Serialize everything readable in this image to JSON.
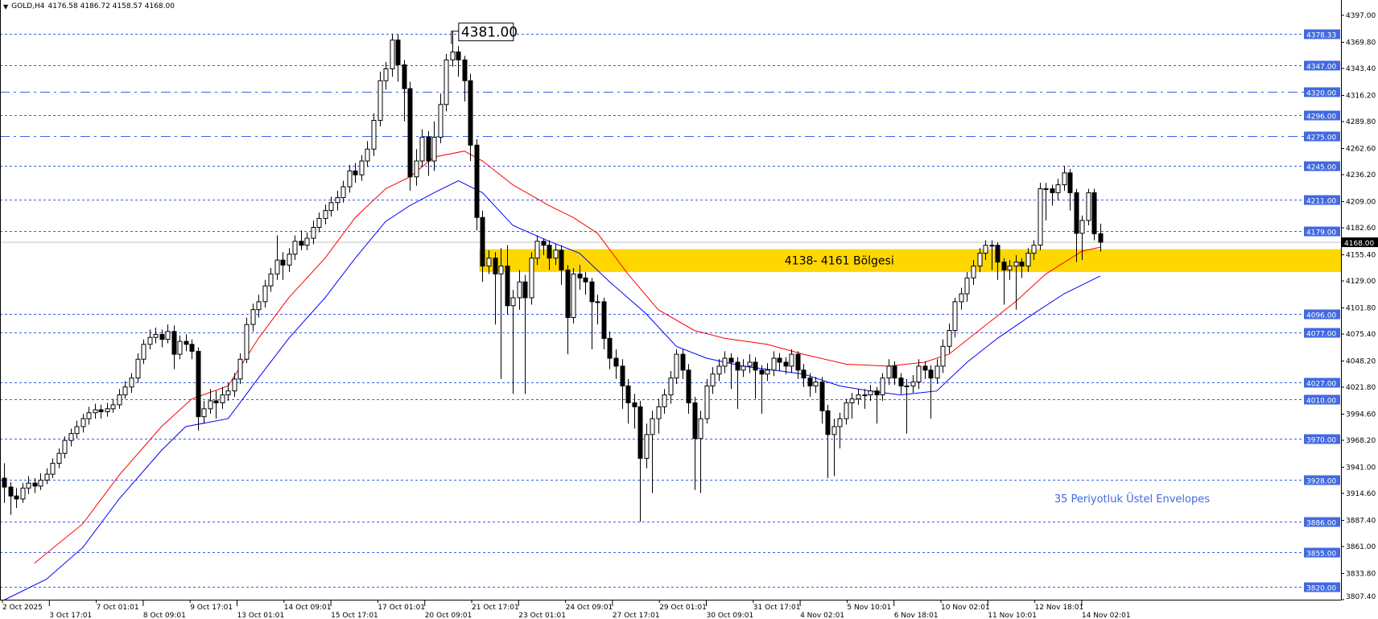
{
  "header": {
    "symbol": "GOLD,H4",
    "ohlc_text": "4176.58 4186.72 4158.57 4168.00",
    "menu_icon": "triangle-down-icon"
  },
  "colors": {
    "line_level": "#3b5fe6",
    "label_bg": "#4169e1",
    "zone": "#ffd700",
    "upper_envelope": "#ff0000",
    "lower_envelope": "#0000ff",
    "current_price_bg": "#000000",
    "annotation_text": "#4169e1"
  },
  "chart_data": {
    "type": "candlestick",
    "symbol": "GOLD",
    "timeframe": "H4",
    "ylim": [
      3807.4,
      4397.0
    ],
    "grid": false,
    "y_ticks": [
      "4397.00",
      "4369.80",
      "4343.40",
      "4316.20",
      "4289.80",
      "4262.60",
      "4236.20",
      "4209.00",
      "4182.60",
      "4155.40",
      "4129.00",
      "4101.80",
      "4075.40",
      "4048.20",
      "4021.80",
      "3994.60",
      "3968.20",
      "3941.00",
      "3914.60",
      "3887.40",
      "3861.00",
      "3833.80",
      "3807.40"
    ],
    "x_ticks": [
      "2 Oct 2025",
      "3 Oct 17:01",
      "7 Oct 01:01",
      "8 Oct 09:01",
      "9 Oct 17:01",
      "13 Oct 01:01",
      "14 Oct 09:01",
      "15 Oct 17:01",
      "17 Oct 01:01",
      "20 Oct 09:01",
      "21 Oct 17:01",
      "23 Oct 01:01",
      "24 Oct 09:01",
      "27 Oct 17:01",
      "29 Oct 01:01",
      "30 Oct 09:01",
      "31 Oct 17:01",
      "4 Nov 02:01",
      "5 Nov 10:01",
      "6 Nov 18:01",
      "10 Nov 02:01",
      "11 Nov 10:01",
      "12 Nov 18:01",
      "14 Nov 02:01"
    ],
    "ohlc": [
      [
        3930,
        3945,
        3905,
        3921
      ],
      [
        3921,
        3926,
        3893,
        3912
      ],
      [
        3912,
        3920,
        3900,
        3909
      ],
      [
        3909,
        3925,
        3905,
        3920
      ],
      [
        3920,
        3932,
        3914,
        3925
      ],
      [
        3925,
        3930,
        3915,
        3922
      ],
      [
        3922,
        3935,
        3918,
        3928
      ],
      [
        3928,
        3940,
        3924,
        3934
      ],
      [
        3934,
        3950,
        3930,
        3945
      ],
      [
        3945,
        3960,
        3940,
        3955
      ],
      [
        3955,
        3972,
        3950,
        3968
      ],
      [
        3968,
        3980,
        3962,
        3975
      ],
      [
        3975,
        3988,
        3970,
        3982
      ],
      [
        3982,
        3995,
        3976,
        3990
      ],
      [
        3990,
        4002,
        3984,
        3996
      ],
      [
        3996,
        4005,
        3990,
        3999
      ],
      [
        3999,
        4004,
        3990,
        3997
      ],
      [
        3997,
        4006,
        3992,
        4000
      ],
      [
        4000,
        4010,
        3996,
        4004
      ],
      [
        4004,
        4020,
        4000,
        4014
      ],
      [
        4014,
        4028,
        4010,
        4022
      ],
      [
        4022,
        4036,
        4016,
        4031
      ],
      [
        4031,
        4056,
        4026,
        4050
      ],
      [
        4050,
        4070,
        4045,
        4065
      ],
      [
        4065,
        4080,
        4060,
        4072
      ],
      [
        4072,
        4082,
        4066,
        4075
      ],
      [
        4075,
        4080,
        4062,
        4070
      ],
      [
        4070,
        4085,
        4066,
        4078
      ],
      [
        4078,
        4084,
        4040,
        4055
      ],
      [
        4055,
        4074,
        4050,
        4068
      ],
      [
        4068,
        4075,
        4058,
        4065
      ],
      [
        4065,
        4070,
        4050,
        4058
      ],
      [
        4058,
        4062,
        3978,
        3992
      ],
      [
        3992,
        4008,
        3985,
        4000
      ],
      [
        4000,
        4020,
        3995,
        4008
      ],
      [
        4008,
        4018,
        3990,
        4006
      ],
      [
        4006,
        4022,
        4000,
        4014
      ],
      [
        4014,
        4026,
        4008,
        4018
      ],
      [
        4018,
        4036,
        4012,
        4030
      ],
      [
        4030,
        4056,
        4025,
        4050
      ],
      [
        4050,
        4092,
        4046,
        4085
      ],
      [
        4085,
        4106,
        4078,
        4100
      ],
      [
        4100,
        4115,
        4092,
        4108
      ],
      [
        4108,
        4130,
        4102,
        4124
      ],
      [
        4124,
        4142,
        4118,
        4136
      ],
      [
        4136,
        4175,
        4130,
        4150
      ],
      [
        4150,
        4158,
        4130,
        4145
      ],
      [
        4145,
        4162,
        4138,
        4156
      ],
      [
        4156,
        4175,
        4150,
        4169
      ],
      [
        4169,
        4180,
        4160,
        4165
      ],
      [
        4165,
        4178,
        4160,
        4172
      ],
      [
        4172,
        4190,
        4166,
        4183
      ],
      [
        4183,
        4198,
        4178,
        4192
      ],
      [
        4192,
        4206,
        4186,
        4200
      ],
      [
        4200,
        4214,
        4194,
        4208
      ],
      [
        4208,
        4220,
        4200,
        4213
      ],
      [
        4213,
        4230,
        4208,
        4224
      ],
      [
        4224,
        4246,
        4218,
        4240
      ],
      [
        4240,
        4248,
        4228,
        4236
      ],
      [
        4236,
        4256,
        4230,
        4250
      ],
      [
        4250,
        4270,
        4244,
        4262
      ],
      [
        4262,
        4298,
        4255,
        4291
      ],
      [
        4291,
        4340,
        4285,
        4331
      ],
      [
        4331,
        4350,
        4322,
        4343
      ],
      [
        4343,
        4378,
        4335,
        4372
      ],
      [
        4372,
        4378,
        4330,
        4347
      ],
      [
        4347,
        4352,
        4290,
        4323
      ],
      [
        4323,
        4330,
        4220,
        4234
      ],
      [
        4234,
        4262,
        4225,
        4250
      ],
      [
        4250,
        4282,
        4244,
        4274
      ],
      [
        4274,
        4280,
        4235,
        4250
      ],
      [
        4250,
        4290,
        4240,
        4274
      ],
      [
        4274,
        4318,
        4268,
        4307
      ],
      [
        4307,
        4358,
        4300,
        4352
      ],
      [
        4352,
        4381,
        4345,
        4360
      ],
      [
        4360,
        4366,
        4335,
        4352
      ],
      [
        4352,
        4356,
        4310,
        4331
      ],
      [
        4331,
        4338,
        4250,
        4266
      ],
      [
        4266,
        4272,
        4180,
        4193
      ],
      [
        4193,
        4200,
        4128,
        4144
      ],
      [
        4144,
        4160,
        4136,
        4152
      ],
      [
        4152,
        4158,
        4085,
        4136
      ],
      [
        4136,
        4162,
        4030,
        4144
      ],
      [
        4144,
        4165,
        4095,
        4104
      ],
      [
        4104,
        4120,
        4015,
        4112
      ],
      [
        4112,
        4140,
        4100,
        4128
      ],
      [
        4128,
        4135,
        4015,
        4112
      ],
      [
        4112,
        4158,
        4105,
        4152
      ],
      [
        4152,
        4175,
        4145,
        4169
      ],
      [
        4169,
        4172,
        4155,
        4165
      ],
      [
        4165,
        4170,
        4140,
        4152
      ],
      [
        4152,
        4166,
        4145,
        4160
      ],
      [
        4160,
        4165,
        4125,
        4140
      ],
      [
        4140,
        4145,
        4055,
        4092
      ],
      [
        4092,
        4142,
        4086,
        4136
      ],
      [
        4136,
        4145,
        4120,
        4132
      ],
      [
        4132,
        4138,
        4115,
        4128
      ],
      [
        4128,
        4132,
        4060,
        4108
      ],
      [
        4108,
        4115,
        4085,
        4108
      ],
      [
        4108,
        4112,
        4060,
        4071
      ],
      [
        4071,
        4078,
        4040,
        4051
      ],
      [
        4051,
        4060,
        4030,
        4043
      ],
      [
        4043,
        4050,
        4000,
        4023
      ],
      [
        4023,
        4030,
        3985,
        4006
      ],
      [
        4006,
        4015,
        3980,
        4002
      ],
      [
        4002,
        4008,
        3886,
        3950
      ],
      [
        3950,
        3985,
        3940,
        3974
      ],
      [
        3974,
        3998,
        3915,
        3990
      ],
      [
        3990,
        4010,
        3975,
        4002
      ],
      [
        4002,
        4020,
        3995,
        4014
      ],
      [
        4014,
        4038,
        4005,
        4031
      ],
      [
        4031,
        4060,
        4025,
        4055
      ],
      [
        4055,
        4060,
        4030,
        4039
      ],
      [
        4039,
        4045,
        3995,
        4006
      ],
      [
        4006,
        4012,
        3918,
        3970
      ],
      [
        3970,
        3998,
        3915,
        3990
      ],
      [
        3990,
        4030,
        3985,
        4023
      ],
      [
        4023,
        4042,
        4015,
        4035
      ],
      [
        4035,
        4050,
        4028,
        4043
      ],
      [
        4043,
        4058,
        4036,
        4051
      ],
      [
        4051,
        4056,
        4020,
        4047
      ],
      [
        4047,
        4052,
        4000,
        4039
      ],
      [
        4039,
        4050,
        4032,
        4043
      ],
      [
        4043,
        4055,
        4036,
        4047
      ],
      [
        4047,
        4052,
        4010,
        4039
      ],
      [
        4039,
        4044,
        3995,
        4035
      ],
      [
        4035,
        4046,
        4028,
        4039
      ],
      [
        4039,
        4058,
        4033,
        4051
      ],
      [
        4051,
        4056,
        4038,
        4047
      ],
      [
        4047,
        4052,
        4035,
        4043
      ],
      [
        4043,
        4060,
        4036,
        4055
      ],
      [
        4055,
        4058,
        4030,
        4039
      ],
      [
        4039,
        4045,
        4022,
        4031
      ],
      [
        4031,
        4036,
        4012,
        4023
      ],
      [
        4023,
        4032,
        4016,
        4027
      ],
      [
        4027,
        4032,
        3985,
        3998
      ],
      [
        3998,
        4004,
        3930,
        3974
      ],
      [
        3974,
        3990,
        3932,
        3982
      ],
      [
        3982,
        3996,
        3960,
        3990
      ],
      [
        3990,
        4010,
        3984,
        4006
      ],
      [
        4006,
        4016,
        3990,
        4010
      ],
      [
        4010,
        4020,
        4004,
        4014
      ],
      [
        4014,
        4020,
        4000,
        4014
      ],
      [
        4014,
        4024,
        4008,
        4018
      ],
      [
        4018,
        4022,
        3985,
        4014
      ],
      [
        4014,
        4036,
        4008,
        4031
      ],
      [
        4031,
        4050,
        4024,
        4043
      ],
      [
        4043,
        4048,
        4024,
        4031
      ],
      [
        4031,
        4036,
        4015,
        4023
      ],
      [
        4023,
        4030,
        3975,
        4023
      ],
      [
        4023,
        4034,
        4016,
        4027
      ],
      [
        4027,
        4050,
        4020,
        4043
      ],
      [
        4043,
        4048,
        4030,
        4039
      ],
      [
        4039,
        4044,
        3990,
        4031
      ],
      [
        4031,
        4050,
        4025,
        4043
      ],
      [
        4043,
        4070,
        4036,
        4063
      ],
      [
        4063,
        4086,
        4056,
        4079
      ],
      [
        4079,
        4112,
        4072,
        4108
      ],
      [
        4108,
        4122,
        4100,
        4116
      ],
      [
        4116,
        4138,
        4108,
        4132
      ],
      [
        4132,
        4150,
        4125,
        4144
      ],
      [
        4144,
        4162,
        4138,
        4157
      ],
      [
        4157,
        4170,
        4150,
        4165
      ],
      [
        4165,
        4170,
        4140,
        4165
      ],
      [
        4165,
        4168,
        4130,
        4148
      ],
      [
        4148,
        4152,
        4105,
        4140
      ],
      [
        4140,
        4150,
        4130,
        4144
      ],
      [
        4144,
        4155,
        4100,
        4148
      ],
      [
        4148,
        4152,
        4132,
        4144
      ],
      [
        4144,
        4162,
        4138,
        4157
      ],
      [
        4157,
        4170,
        4150,
        4165
      ],
      [
        4165,
        4228,
        4160,
        4222
      ],
      [
        4222,
        4228,
        4190,
        4222
      ],
      [
        4222,
        4226,
        4205,
        4218
      ],
      [
        4218,
        4232,
        4210,
        4226
      ],
      [
        4226,
        4245,
        4220,
        4238
      ],
      [
        4238,
        4242,
        4200,
        4218
      ],
      [
        4218,
        4222,
        4148,
        4177
      ],
      [
        4177,
        4195,
        4150,
        4190
      ],
      [
        4190,
        4222,
        4185,
        4218
      ],
      [
        4218,
        4222,
        4170,
        4176.58
      ],
      [
        4176.58,
        4186.72,
        4158.57,
        4168.0
      ]
    ],
    "upper_envelope": [
      [
        5,
        3844
      ],
      [
        13,
        3884
      ],
      [
        19,
        3933
      ],
      [
        26,
        3982
      ],
      [
        31,
        4010
      ],
      [
        37,
        4023
      ],
      [
        42,
        4071
      ],
      [
        47,
        4112
      ],
      [
        53,
        4152
      ],
      [
        58,
        4193
      ],
      [
        63,
        4222
      ],
      [
        67,
        4234
      ],
      [
        71,
        4254
      ],
      [
        76,
        4260
      ],
      [
        79,
        4250
      ],
      [
        84,
        4226
      ],
      [
        90,
        4205
      ],
      [
        94,
        4193
      ],
      [
        98,
        4177
      ],
      [
        103,
        4136
      ],
      [
        108,
        4100
      ],
      [
        114,
        4079
      ],
      [
        119,
        4071
      ],
      [
        126,
        4065
      ],
      [
        132,
        4055
      ],
      [
        139,
        4045
      ],
      [
        146,
        4043
      ],
      [
        152,
        4047
      ],
      [
        156,
        4055
      ],
      [
        162,
        4084
      ],
      [
        167,
        4108
      ],
      [
        172,
        4136
      ],
      [
        178,
        4159
      ],
      [
        181,
        4163
      ]
    ],
    "lower_envelope": [
      [
        0,
        3807
      ],
      [
        7,
        3828
      ],
      [
        13,
        3860
      ],
      [
        19,
        3909
      ],
      [
        26,
        3958
      ],
      [
        30,
        3982
      ],
      [
        37,
        3990
      ],
      [
        42,
        4031
      ],
      [
        47,
        4071
      ],
      [
        53,
        4112
      ],
      [
        58,
        4152
      ],
      [
        63,
        4189
      ],
      [
        67,
        4205
      ],
      [
        71,
        4218
      ],
      [
        75,
        4230
      ],
      [
        79,
        4218
      ],
      [
        84,
        4185
      ],
      [
        90,
        4169
      ],
      [
        95,
        4157
      ],
      [
        100,
        4128
      ],
      [
        106,
        4096
      ],
      [
        111,
        4063
      ],
      [
        116,
        4051
      ],
      [
        122,
        4043
      ],
      [
        127,
        4039
      ],
      [
        132,
        4035
      ],
      [
        138,
        4023
      ],
      [
        143,
        4018
      ],
      [
        148,
        4014
      ],
      [
        154,
        4018
      ],
      [
        159,
        4047
      ],
      [
        164,
        4071
      ],
      [
        170,
        4096
      ],
      [
        175,
        4116
      ],
      [
        181,
        4134
      ]
    ],
    "dotted_levels": [
      "4378.33",
      "4347.00",
      "4296.00",
      "4245.00",
      "4211.00",
      "4179.00",
      "4096.00",
      "4077.00",
      "4027.00",
      "4010.00",
      "3970.00",
      "3928.00",
      "3886.00",
      "3855.00",
      "3820.00"
    ],
    "dashdot_levels": [
      "4320.00",
      "4275.00"
    ],
    "current_price": "4168.00",
    "zone": {
      "low": 4138,
      "high": 4161,
      "start_bar": 79,
      "label": "4138- 4161 Bölgesi"
    },
    "peak_label": {
      "value": 4381,
      "text": "4381.00",
      "bar": 74
    },
    "annotation": "35 Periyotluk Üstel Envelopes"
  }
}
